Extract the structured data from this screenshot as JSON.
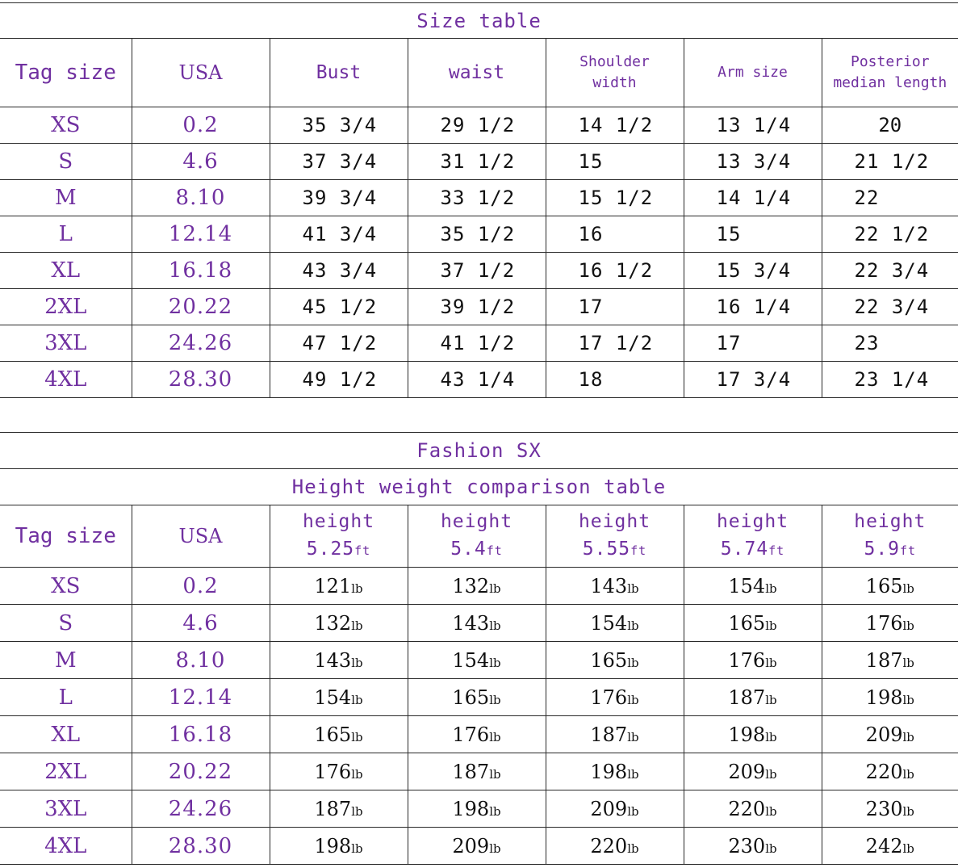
{
  "size_table": {
    "title": "Size table",
    "headers": [
      "Tag size",
      "USA",
      "Bust",
      "waist",
      "Shoulder width",
      "Arm size",
      "Posterior median length"
    ],
    "header_lines": {
      "shoulder": [
        "Shoulder",
        "width"
      ],
      "posterior": [
        "Posterior",
        "median length"
      ]
    },
    "rows": [
      [
        "XS",
        "0.2",
        "35 3/4",
        "29 1/2",
        "14 1/2",
        "13 1/4",
        "20"
      ],
      [
        "S",
        "4.6",
        "37 3/4",
        "31 1/2",
        "15",
        "13 3/4",
        "21 1/2"
      ],
      [
        "M",
        "8.10",
        "39 3/4",
        "33 1/2",
        "15 1/2",
        "14 1/4",
        "22"
      ],
      [
        "L",
        "12.14",
        "41 3/4",
        "35 1/2",
        "16",
        "15",
        "22 1/2"
      ],
      [
        "XL",
        "16.18",
        "43 3/4",
        "37 1/2",
        "16 1/2",
        "15 3/4",
        "22 3/4"
      ],
      [
        "2XL",
        "20.22",
        "45 1/2",
        "39 1/2",
        "17",
        "16 1/4",
        "22 3/4"
      ],
      [
        "3XL",
        "24.26",
        "47 1/2",
        "41 1/2",
        "17 1/2",
        "17",
        "23"
      ],
      [
        "4XL",
        "28.30",
        "49 1/2",
        "43 1/4",
        "18",
        "17 3/4",
        "23 1/4"
      ]
    ]
  },
  "comparison_table": {
    "brand_title": "Fashion SX",
    "title": "Height weight comparison table",
    "headers": [
      "Tag size",
      "USA"
    ],
    "height_label": "height",
    "height_unit": "ft",
    "heights": [
      "5.25",
      "5.4",
      "5.55",
      "5.74",
      "5.9"
    ],
    "weight_unit": "lb",
    "rows": [
      [
        "XS",
        "0.2",
        "121",
        "132",
        "143",
        "154",
        "165"
      ],
      [
        "S",
        "4.6",
        "132",
        "143",
        "154",
        "165",
        "176"
      ],
      [
        "M",
        "8.10",
        "143",
        "154",
        "165",
        "176",
        "187"
      ],
      [
        "L",
        "12.14",
        "154",
        "165",
        "176",
        "187",
        "198"
      ],
      [
        "XL",
        "16.18",
        "165",
        "176",
        "187",
        "198",
        "209"
      ],
      [
        "2XL",
        "20.22",
        "176",
        "187",
        "198",
        "209",
        "220"
      ],
      [
        "3XL",
        "24.26",
        "187",
        "198",
        "209",
        "220",
        "230"
      ],
      [
        "4XL",
        "28.30",
        "198",
        "209",
        "220",
        "230",
        "242"
      ]
    ]
  },
  "colors": {
    "header_text": "#7030a0",
    "body_text": "#111111",
    "rule": "#2a2a2a"
  }
}
